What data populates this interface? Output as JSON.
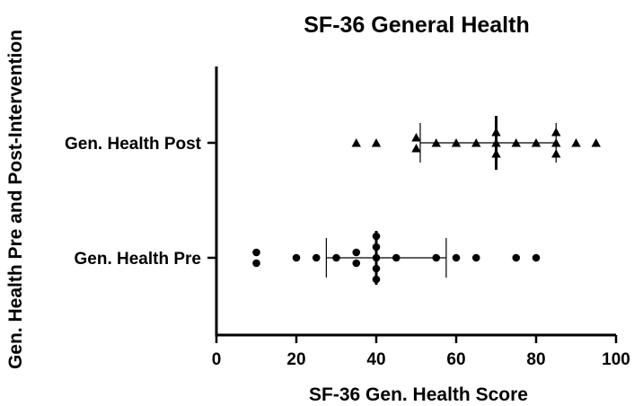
{
  "chart_data": {
    "type": "scatter",
    "title": "SF-36 General Health",
    "xlabel": "SF-36 Gen. Health Score",
    "ylabel": "Gen. Health Pre and Post-Intervention",
    "xlim": [
      0,
      100
    ],
    "xticks": [
      0,
      20,
      40,
      60,
      80,
      100
    ],
    "grid": false,
    "categories": [
      "Gen. Health Post",
      "Gen. Health Pre"
    ],
    "series": [
      {
        "category": "Gen. Health Post",
        "marker": "triangle",
        "values": [
          35,
          40,
          50,
          50,
          55,
          60,
          65,
          70,
          70,
          70,
          75,
          80,
          85,
          85,
          85,
          90,
          95
        ],
        "mean": 70,
        "sd_low": 51,
        "sd_high": 85
      },
      {
        "category": "Gen. Health Pre",
        "marker": "circle",
        "values": [
          10,
          10,
          20,
          25,
          30,
          35,
          35,
          40,
          40,
          40,
          40,
          40,
          45,
          55,
          60,
          65,
          75,
          80
        ],
        "mean": 40,
        "sd_low": 27.5,
        "sd_high": 57.5
      }
    ]
  }
}
